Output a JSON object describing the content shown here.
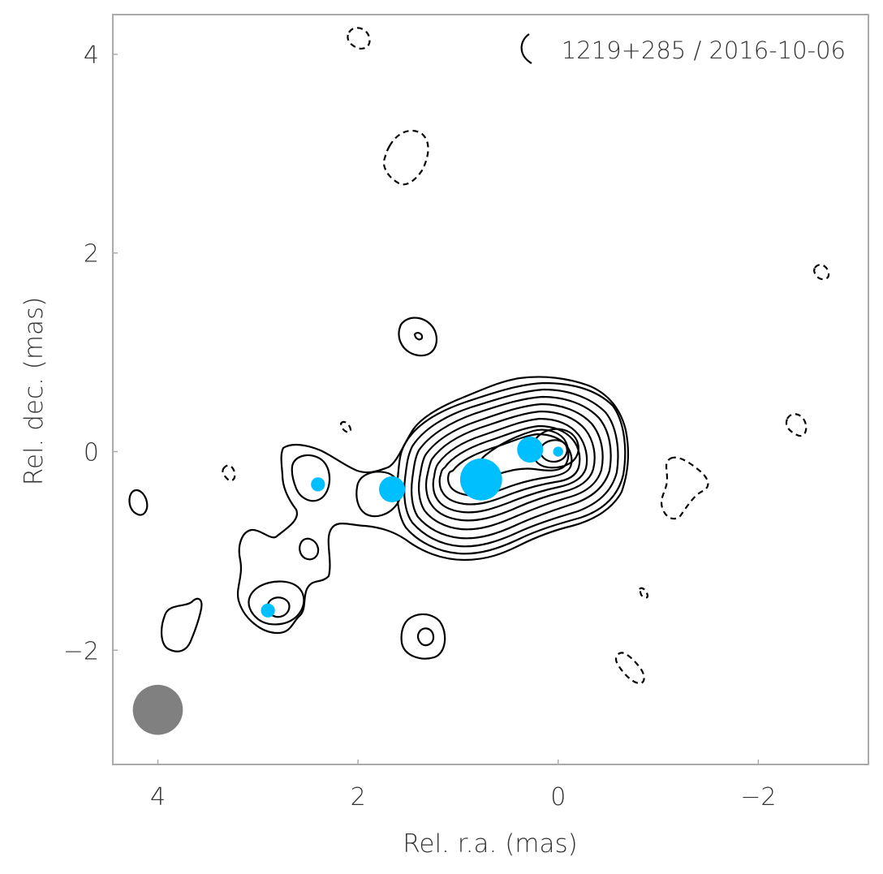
{
  "chart_data": {
    "type": "scatter",
    "title": "1219+285 / 2016-10-06",
    "xlabel": "Rel. r.a. (mas)",
    "ylabel": "Rel. dec. (mas)",
    "xlim": [
      4.45,
      -3.1
    ],
    "ylim": [
      -3.15,
      4.4
    ],
    "x_ticks": [
      4,
      2,
      0,
      -2
    ],
    "x_tick_labels": [
      "4",
      "2",
      "0",
      "−2"
    ],
    "y_ticks": [
      -2,
      0,
      2,
      4
    ],
    "y_tick_labels": [
      "−2",
      "0",
      "2",
      "4"
    ],
    "grid": false,
    "components": {
      "name": "model components",
      "color": "#00bfff",
      "points": [
        {
          "x": 0.0,
          "y": 0.0,
          "size": 0.05
        },
        {
          "x": 0.28,
          "y": 0.02,
          "size": 0.13
        },
        {
          "x": 0.77,
          "y": -0.28,
          "size": 0.21
        },
        {
          "x": 1.66,
          "y": -0.38,
          "size": 0.13
        },
        {
          "x": 2.4,
          "y": -0.33,
          "size": 0.07
        },
        {
          "x": 2.9,
          "y": -1.6,
          "size": 0.07
        }
      ]
    },
    "beam": {
      "x": 4.0,
      "y": -2.6,
      "major": 0.5,
      "minor": 0.5,
      "color": "#808080"
    },
    "contours": {
      "core_center": {
        "x": 0.0,
        "y": 0.0
      },
      "positive_levels_count": 12,
      "negative_levels_count": 1
    }
  }
}
